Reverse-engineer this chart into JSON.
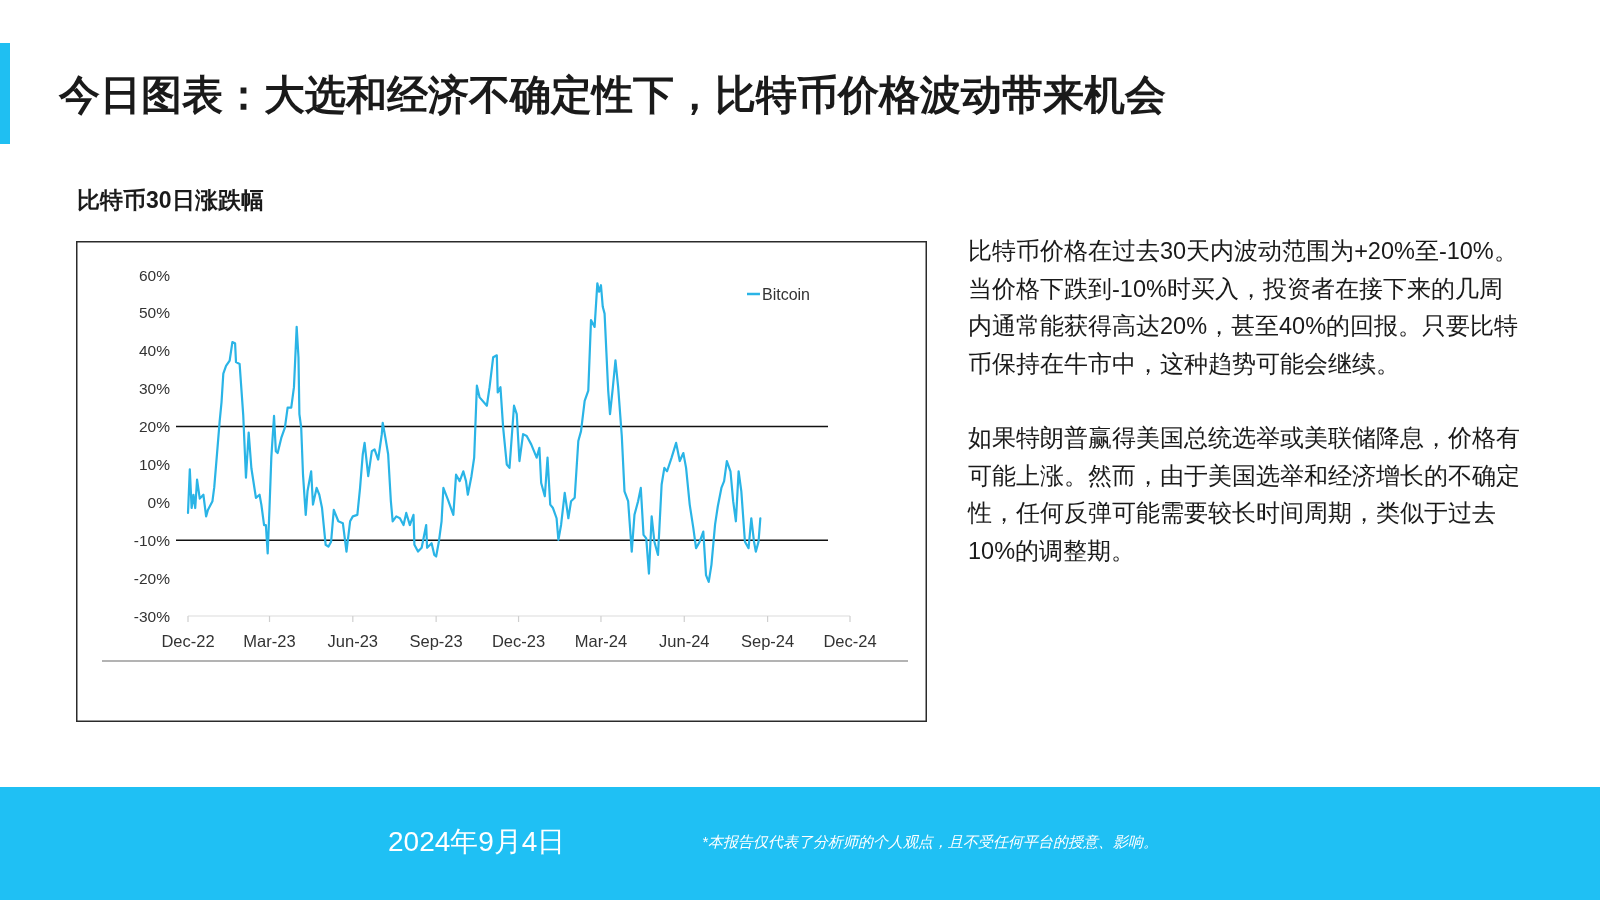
{
  "chart_data": {
    "type": "line",
    "title": "今日图表：大选和经济不确定性下，比特币价格波动带来机会",
    "subtitle": "比特币30日涨跌幅",
    "annotations": [
      "比特币价格在过去30天内波动范围为+20%至-10%。当价格下跌到-10%时买入，投资者在接下来的几周内通常能获得高达20%，甚至40%的回报。只要比特币保持在牛市中，这种趋势可能会继续。",
      "如果特朗普赢得美国总统选举或美联储降息，价格有可能上涨。然而，由于美国选举和经济增长的不确定性，任何反弹可能需要较长时间周期，类似于过去10%的调整期。",
      "2024年9月4日",
      "*本报告仅代表了分析师的个人观点，且不受任何平台的授意、影响。"
    ],
    "x": [
      "2022-12-01",
      "2022-12-03",
      "2022-12-05",
      "2022-12-07",
      "2022-12-09",
      "2022-12-11",
      "2022-12-14",
      "2022-12-18",
      "2022-12-21",
      "2022-12-23",
      "2022-12-28",
      "2022-12-30",
      "2023-01-02",
      "2023-01-05",
      "2023-01-07",
      "2023-01-09",
      "2023-01-12",
      "2023-01-16",
      "2023-01-19",
      "2023-01-22",
      "2023-01-23",
      "2023-01-27",
      "2023-01-31",
      "2023-02-03",
      "2023-02-06",
      "2023-02-09",
      "2023-02-14",
      "2023-02-18",
      "2023-02-20",
      "2023-02-23",
      "2023-02-25",
      "2023-02-27",
      "2023-03-01",
      "2023-03-03",
      "2023-03-06",
      "2023-03-08",
      "2023-03-10",
      "2023-03-14",
      "2023-03-18",
      "2023-03-21",
      "2023-03-25",
      "2023-03-28",
      "2023-03-31",
      "2023-04-02",
      "2023-04-03",
      "2023-04-05",
      "2023-04-07",
      "2023-04-10",
      "2023-04-12",
      "2023-04-16",
      "2023-04-18",
      "2023-04-22",
      "2023-04-25",
      "2023-04-28",
      "2023-05-02",
      "2023-05-05",
      "2023-05-08",
      "2023-05-11",
      "2023-05-16",
      "2023-05-21",
      "2023-05-25",
      "2023-05-29",
      "2023-06-01",
      "2023-06-06",
      "2023-06-09",
      "2023-06-12",
      "2023-06-14",
      "2023-06-18",
      "2023-06-22",
      "2023-06-25",
      "2023-06-29",
      "2023-07-03",
      "2023-07-04",
      "2023-07-07",
      "2023-07-10",
      "2023-07-13",
      "2023-07-15",
      "2023-07-19",
      "2023-07-23",
      "2023-07-27",
      "2023-07-30",
      "2023-08-03",
      "2023-08-07",
      "2023-08-08",
      "2023-08-12",
      "2023-08-16",
      "2023-08-21",
      "2023-08-22",
      "2023-08-27",
      "2023-08-30",
      "2023-09-01",
      "2023-09-04",
      "2023-09-07",
      "2023-09-09",
      "2023-09-14",
      "2023-09-20",
      "2023-09-23",
      "2023-09-27",
      "2023-10-01",
      "2023-10-04",
      "2023-10-06",
      "2023-10-10",
      "2023-10-13",
      "2023-10-16",
      "2023-10-19",
      "2023-10-27",
      "2023-10-30",
      "2023-11-03",
      "2023-11-07",
      "2023-11-08",
      "2023-11-11",
      "2023-11-14",
      "2023-11-18",
      "2023-11-21",
      "2023-11-26",
      "2023-11-29",
      "2023-12-02",
      "2023-12-06",
      "2023-12-10",
      "2023-12-15",
      "2023-12-21",
      "2023-12-24",
      "2023-12-26",
      "2023-12-30",
      "2024-01-02",
      "2024-01-05",
      "2024-01-08",
      "2024-01-12",
      "2024-01-14",
      "2024-01-17",
      "2024-01-21",
      "2024-01-25",
      "2024-01-28",
      "2024-02-01",
      "2024-02-05",
      "2024-02-08",
      "2024-02-12",
      "2024-02-16",
      "2024-02-19",
      "2024-02-23",
      "2024-02-26",
      "2024-02-28",
      "2024-03-01",
      "2024-03-03",
      "2024-03-05",
      "2024-03-07",
      "2024-03-09",
      "2024-03-11",
      "2024-03-14",
      "2024-03-17",
      "2024-03-20",
      "2024-03-24",
      "2024-03-27",
      "2024-03-31",
      "2024-04-04",
      "2024-04-07",
      "2024-04-11",
      "2024-04-14",
      "2024-04-17",
      "2024-04-20",
      "2024-04-23",
      "2024-04-26",
      "2024-04-29",
      "2024-05-03",
      "2024-05-07",
      "2024-05-10",
      "2024-05-13",
      "2024-05-18",
      "2024-05-23",
      "2024-05-27",
      "2024-05-31",
      "2024-06-03",
      "2024-06-07",
      "2024-06-11",
      "2024-06-14",
      "2024-06-18",
      "2024-06-22",
      "2024-06-25",
      "2024-06-28",
      "2024-07-01",
      "2024-07-05",
      "2024-07-08",
      "2024-07-12",
      "2024-07-15",
      "2024-07-18",
      "2024-07-22",
      "2024-07-25",
      "2024-07-28",
      "2024-07-31",
      "2024-08-03",
      "2024-08-07",
      "2024-08-11",
      "2024-08-14",
      "2024-08-17",
      "2024-08-19",
      "2024-08-22",
      "2024-08-24"
    ],
    "series": [
      {
        "name": "Bitcoin",
        "color": "#2ab4e6",
        "values": [
          -2.8,
          8.7,
          -1.5,
          2,
          -1.5,
          6,
          1,
          2,
          -3.7,
          -2,
          0.3,
          4,
          12.7,
          21.5,
          26.4,
          34,
          36,
          37.4,
          42.3,
          42,
          37,
          36.5,
          23,
          6.5,
          18.4,
          9,
          1.2,
          2,
          -0.6,
          -6,
          -6,
          -13.5,
          -1.5,
          11.8,
          22.8,
          13.5,
          13,
          17,
          19.7,
          25,
          25,
          30.4,
          46.3,
          38.3,
          23.3,
          19.7,
          7.3,
          -3.3,
          3,
          8.2,
          -0.6,
          3.8,
          2,
          -1.5,
          -11.2,
          -11.7,
          -10.4,
          -2,
          -5,
          -5.5,
          -13,
          -5,
          -3.7,
          -3.3,
          3.8,
          12.7,
          15.7,
          6.9,
          13.5,
          14,
          11.3,
          18,
          21,
          17,
          12.7,
          0.3,
          -5,
          -3.7,
          -4.2,
          -6,
          -2.8,
          -6,
          -3.3,
          -11.2,
          -13,
          -12,
          -6,
          -12,
          -10.8,
          -13.9,
          -14.3,
          -10.4,
          -5,
          3.8,
          0.7,
          -3.3,
          7.3,
          5.6,
          8.2,
          5.6,
          2,
          6.9,
          11.8,
          30.8,
          27.7,
          25.5,
          30.4,
          38.3,
          38.8,
          29,
          30.4,
          19.7,
          10,
          9.1,
          25.5,
          23.3,
          10.9,
          18,
          17.5,
          15.3,
          11.8,
          14.4,
          5.1,
          1.6,
          11.8,
          -0.6,
          -1.5,
          -4.2,
          -9.9,
          -5.9,
          2.5,
          -4.2,
          0.3,
          1.2,
          16.2,
          18.8,
          26.8,
          29.5,
          48.1,
          46.3,
          57.8,
          55.6,
          57.3,
          51.6,
          49.8,
          39.6,
          29.5,
          23.3,
          30,
          37.5,
          30.4,
          17.5,
          2.9,
          0.3,
          -13,
          -3.3,
          0.3,
          3.8,
          -8.6,
          -9.5,
          -18.8,
          -3.7,
          -10.4,
          -13.9,
          4.7,
          9.1,
          8.2,
          11.8,
          15.7,
          10.9,
          13,
          9.1,
          -0.6,
          -6.8,
          -12.1,
          -10.4,
          -7.7,
          -19.2,
          -21,
          -16.5,
          -5.9,
          -1.1,
          3.8,
          5.6,
          10.9,
          8.2,
          0.3,
          -5,
          8.2,
          2.9,
          -10.4,
          -12.1,
          -4.2,
          -10.4,
          -13,
          -10.4,
          -4.2
        ]
      }
    ],
    "line_style": "solid",
    "xlim": [
      "2022-12-01",
      "2024-12-01"
    ],
    "xticks": [
      {
        "value": "2022-12-01",
        "label": "Dec-22"
      },
      {
        "value": "2023-03-01",
        "label": "Mar-23"
      },
      {
        "value": "2023-06-01",
        "label": "Jun-23"
      },
      {
        "value": "2023-09-01",
        "label": "Sep-23"
      },
      {
        "value": "2023-12-01",
        "label": "Dec-23"
      },
      {
        "value": "2024-03-01",
        "label": "Mar-24"
      },
      {
        "value": "2024-06-01",
        "label": "Jun-24"
      },
      {
        "value": "2024-09-01",
        "label": "Sep-24"
      },
      {
        "value": "2024-12-01",
        "label": "Dec-24"
      }
    ],
    "ylim": [
      -30,
      60
    ],
    "yticks": [
      {
        "value": 60,
        "label": "60%"
      },
      {
        "value": 50,
        "label": "50%"
      },
      {
        "value": 40,
        "label": "40%"
      },
      {
        "value": 30,
        "label": "30%"
      },
      {
        "value": 20,
        "label": "20%"
      },
      {
        "value": 10,
        "label": "10%"
      },
      {
        "value": 0,
        "label": "0%"
      },
      {
        "value": -10,
        "label": "-10%"
      },
      {
        "value": -20,
        "label": "-20%"
      },
      {
        "value": -30,
        "label": "-30%"
      }
    ],
    "ref_lines": [
      {
        "axis": "y",
        "value": 20,
        "color": "#111111"
      },
      {
        "axis": "y",
        "value": -10,
        "color": "#111111"
      }
    ],
    "legend": "top right"
  }
}
